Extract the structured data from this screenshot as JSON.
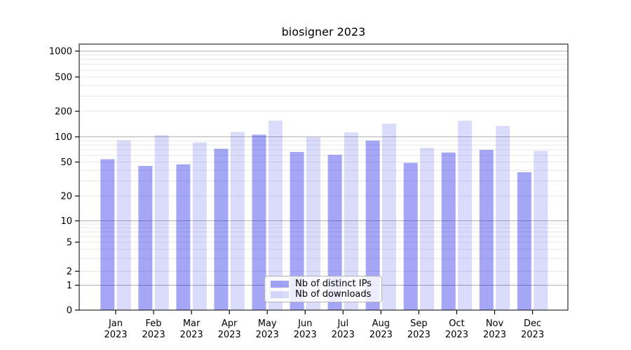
{
  "chart_data": {
    "type": "bar",
    "title": "biosigner 2023",
    "categories": [
      "Jan",
      "Feb",
      "Mar",
      "Apr",
      "May",
      "Jun",
      "Jul",
      "Aug",
      "Sep",
      "Oct",
      "Nov",
      "Dec"
    ],
    "x_tick_second_line": "2023",
    "series": [
      {
        "name": "Nb of distinct IPs",
        "color": "rgba(0,0,230,0.35)",
        "values": [
          54,
          45,
          47,
          72,
          106,
          66,
          61,
          90,
          49,
          65,
          70,
          38
        ]
      },
      {
        "name": "Nb of downloads",
        "color": "rgba(0,0,230,0.14)",
        "values": [
          91,
          105,
          86,
          114,
          155,
          99,
          113,
          143,
          74,
          155,
          134,
          68
        ]
      }
    ],
    "yticks": [
      0,
      1,
      2,
      5,
      10,
      20,
      50,
      100,
      200,
      500,
      1000
    ],
    "yscale": "symlog",
    "ylim": [
      0,
      1200
    ],
    "xlabel": "",
    "ylabel": "",
    "grid": "horizontal major+minor",
    "legend_position": "lower center"
  }
}
